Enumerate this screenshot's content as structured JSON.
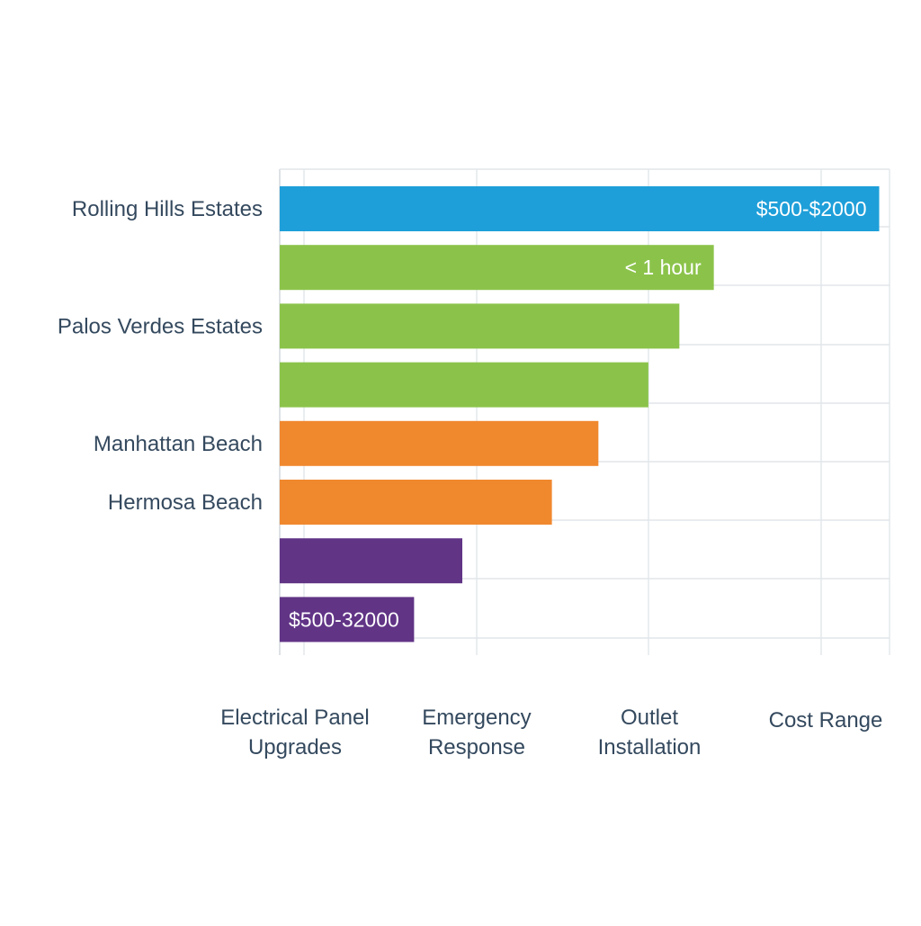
{
  "chart_data": {
    "type": "bar",
    "orientation": "horizontal",
    "grid": true,
    "bars": [
      {
        "category": "Rolling Hills Estates",
        "value": 3.48,
        "color": "#1E9FD9",
        "data_label": "$500-$2000"
      },
      {
        "category": "",
        "value": 2.52,
        "color": "#8BC34A",
        "data_label": "< 1 hour"
      },
      {
        "category": "Palos Verdes Estates",
        "value": 2.32,
        "color": "#8BC34A",
        "data_label": ""
      },
      {
        "category": "",
        "value": 2.14,
        "color": "#8BC34A",
        "data_label": ""
      },
      {
        "category": "Manhattan Beach",
        "value": 1.85,
        "color": "#F0882E",
        "data_label": ""
      },
      {
        "category": "Hermosa Beach",
        "value": 1.58,
        "color": "#F0882E",
        "data_label": ""
      },
      {
        "category": "",
        "value": 1.06,
        "color": "#613486",
        "data_label": ""
      },
      {
        "category": "",
        "value": 0.78,
        "color": "#613486",
        "data_label": "$500-32000"
      }
    ],
    "x_categories": [
      {
        "line1": "Electrical Panel",
        "line2": "Upgrades"
      },
      {
        "line1": "Emergency",
        "line2": "Response"
      },
      {
        "line1": "Outlet",
        "line2": "Installation"
      },
      {
        "line1": "Cost Range",
        "line2": ""
      }
    ],
    "xlim": [
      0,
      3.54
    ]
  }
}
